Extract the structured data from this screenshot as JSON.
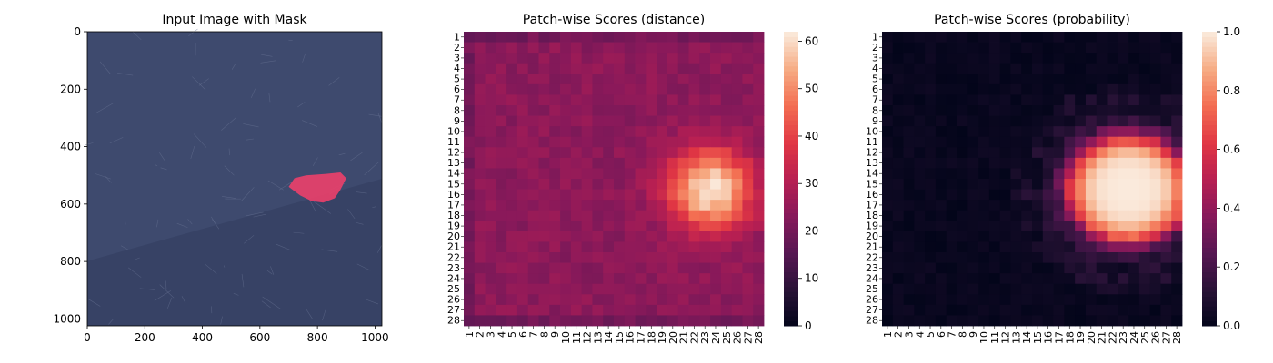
{
  "chart_data": [
    {
      "type": "image",
      "title": "Input Image with Mask",
      "xticks": [
        0,
        200,
        400,
        600,
        800,
        1000
      ],
      "yticks": [
        0,
        200,
        400,
        600,
        800,
        1000
      ],
      "xlim": [
        0,
        1024
      ],
      "ylim": [
        1024,
        0
      ],
      "colors": {
        "background": "#3e4a6e",
        "mask": "#e8406a"
      }
    },
    {
      "type": "heatmap",
      "title": "Patch-wise Scores (distance)",
      "rows": 28,
      "cols": 28,
      "row_labels": [
        "1",
        "2",
        "3",
        "4",
        "5",
        "6",
        "7",
        "8",
        "9",
        "10",
        "11",
        "12",
        "13",
        "14",
        "15",
        "16",
        "17",
        "18",
        "19",
        "20",
        "21",
        "22",
        "23",
        "24",
        "25",
        "26",
        "27",
        "28"
      ],
      "col_labels": [
        "1",
        "2",
        "3",
        "4",
        "5",
        "6",
        "7",
        "8",
        "9",
        "10",
        "11",
        "12",
        "13",
        "14",
        "15",
        "16",
        "17",
        "18",
        "19",
        "20",
        "21",
        "22",
        "23",
        "24",
        "25",
        "26",
        "27",
        "28"
      ],
      "colorbar": {
        "min": 0,
        "max": 62,
        "ticks": [
          0,
          10,
          20,
          30,
          40,
          50,
          60
        ]
      },
      "colormap": "rocket",
      "hotspot_center": {
        "row": 15.5,
        "col": 23.5
      },
      "baseline": 24,
      "peak": 62
    },
    {
      "type": "heatmap",
      "title": "Patch-wise Scores (probability)",
      "rows": 28,
      "cols": 28,
      "row_labels": [
        "1",
        "2",
        "3",
        "4",
        "5",
        "6",
        "7",
        "8",
        "9",
        "10",
        "11",
        "12",
        "13",
        "14",
        "15",
        "16",
        "17",
        "18",
        "19",
        "20",
        "21",
        "22",
        "23",
        "24",
        "25",
        "26",
        "27",
        "28"
      ],
      "col_labels": [
        "1",
        "2",
        "3",
        "4",
        "5",
        "6",
        "7",
        "8",
        "9",
        "10",
        "11",
        "12",
        "13",
        "14",
        "15",
        "16",
        "17",
        "18",
        "19",
        "20",
        "21",
        "22",
        "23",
        "24",
        "25",
        "26",
        "27",
        "28"
      ],
      "colorbar": {
        "min": 0,
        "max": 1,
        "ticks": [
          "0.0",
          "0.2",
          "0.4",
          "0.6",
          "0.8",
          "1.0"
        ]
      },
      "colormap": "rocket",
      "hotspot_center": {
        "row": 15.5,
        "col": 23.5
      },
      "peak": 1.0
    }
  ]
}
